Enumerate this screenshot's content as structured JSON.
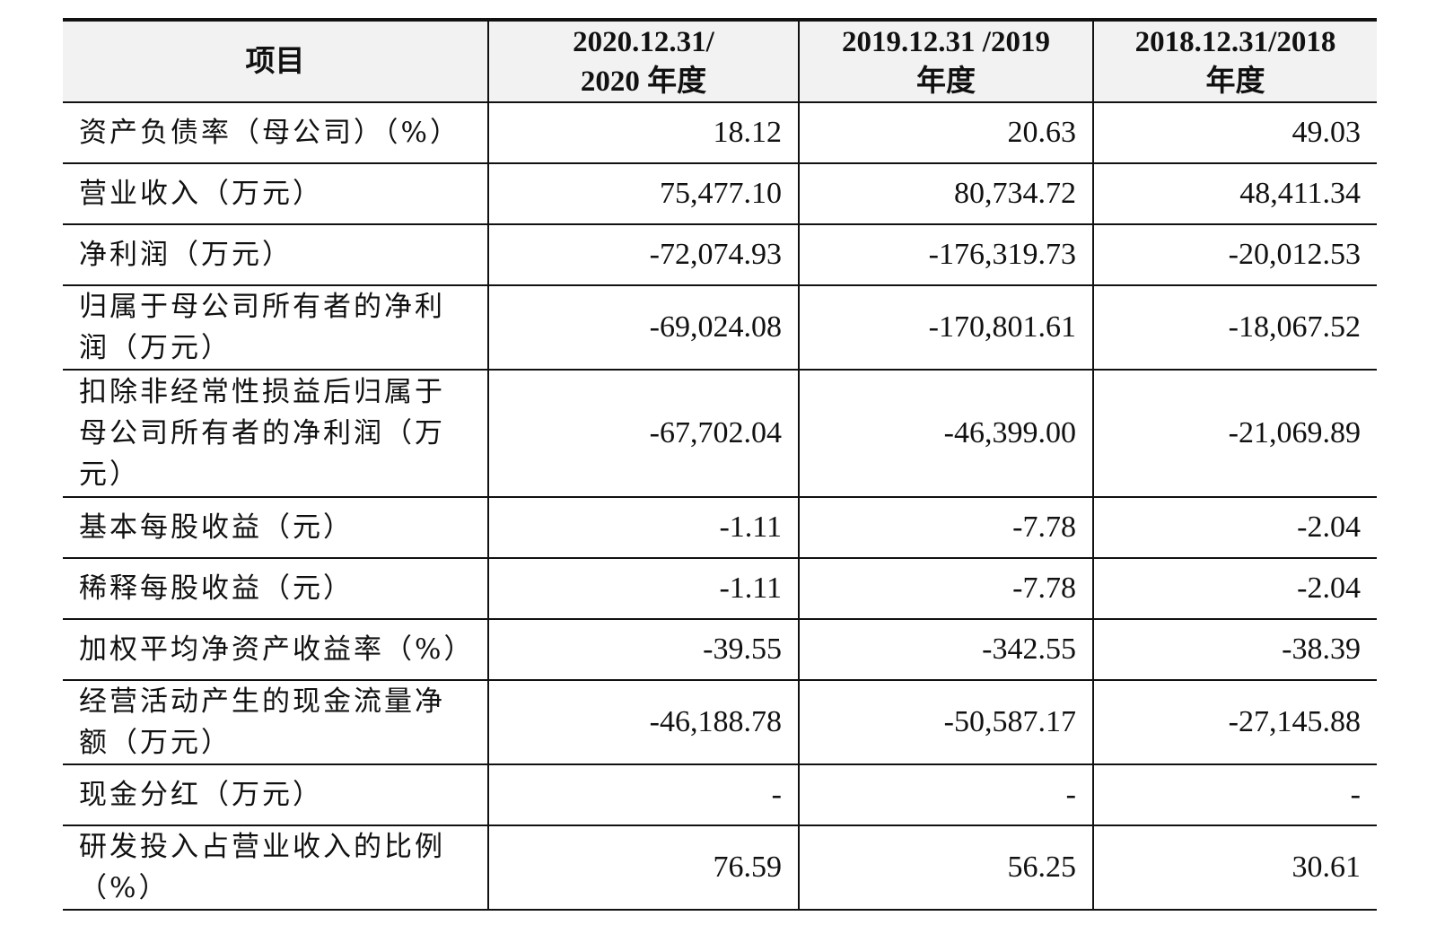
{
  "table": {
    "headers": [
      {
        "lines": [
          "项目"
        ]
      },
      {
        "lines": [
          "2020.12.31/",
          "2020 年度"
        ]
      },
      {
        "lines": [
          "2019.12.31 /2019",
          "年度"
        ]
      },
      {
        "lines": [
          "2018.12.31/2018",
          "年度"
        ]
      }
    ],
    "rows": [
      {
        "label": "资产负债率（母公司）（%）",
        "values": [
          "18.12",
          "20.63",
          "49.03"
        ]
      },
      {
        "label": "营业收入（万元）",
        "values": [
          "75,477.10",
          "80,734.72",
          "48,411.34"
        ]
      },
      {
        "label": "净利润（万元）",
        "values": [
          "-72,074.93",
          "-176,319.73",
          "-20,012.53"
        ]
      },
      {
        "label": "归属于母公司所有者的净利润（万元）",
        "values": [
          "-69,024.08",
          "-170,801.61",
          "-18,067.52"
        ]
      },
      {
        "label": "扣除非经常性损益后归属于母公司所有者的净利润（万元）",
        "values": [
          "-67,702.04",
          "-46,399.00",
          "-21,069.89"
        ]
      },
      {
        "label": "基本每股收益（元）",
        "values": [
          "-1.11",
          "-7.78",
          "-2.04"
        ]
      },
      {
        "label": "稀释每股收益（元）",
        "values": [
          "-1.11",
          "-7.78",
          "-2.04"
        ]
      },
      {
        "label": "加权平均净资产收益率（%）",
        "values": [
          "-39.55",
          "-342.55",
          "-38.39"
        ]
      },
      {
        "label": "经营活动产生的现金流量净额（万元）",
        "values": [
          "-46,188.78",
          "-50,587.17",
          "-27,145.88"
        ]
      },
      {
        "label": "现金分红（万元）",
        "values": [
          "-",
          "-",
          "-"
        ]
      },
      {
        "label": "研发投入占营业收入的比例（%）",
        "values": [
          "76.59",
          "56.25",
          "30.61"
        ]
      }
    ]
  }
}
